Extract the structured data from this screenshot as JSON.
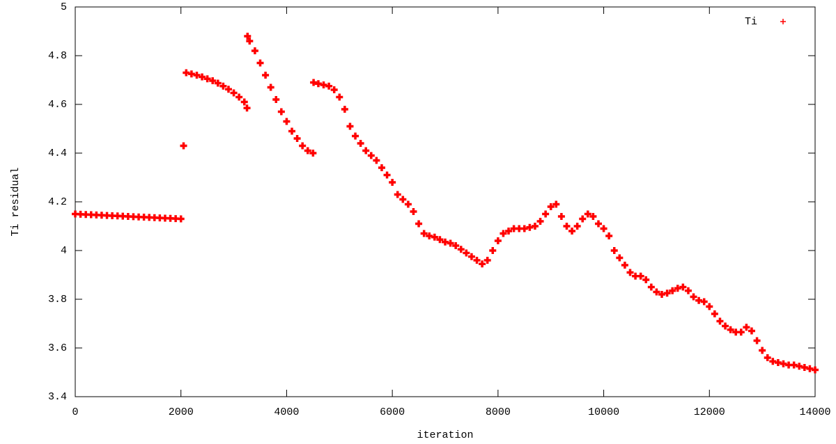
{
  "chart_data": {
    "type": "scatter",
    "x_label": "iteration",
    "y_label": "Ti residual",
    "xlim": [
      0,
      14000
    ],
    "ylim": [
      3.4,
      5
    ],
    "xticks": [
      0,
      2000,
      4000,
      6000,
      8000,
      10000,
      12000,
      14000
    ],
    "yticks": [
      3.4,
      3.6,
      3.8,
      4,
      4.2,
      4.4,
      4.6,
      4.8,
      5
    ],
    "grid": false,
    "legend": "upper right",
    "x": [
      0,
      100,
      200,
      300,
      400,
      500,
      600,
      700,
      800,
      900,
      1000,
      1100,
      1200,
      1300,
      1400,
      1500,
      1600,
      1700,
      1800,
      1900,
      2000,
      2050,
      2100,
      2200,
      2300,
      2400,
      2500,
      2600,
      2700,
      2800,
      2900,
      3000,
      3100,
      3200,
      3250,
      3260,
      3300,
      3400,
      3500,
      3600,
      3700,
      3800,
      3900,
      4000,
      4100,
      4200,
      4300,
      4400,
      4500,
      4510,
      4600,
      4700,
      4800,
      4900,
      5000,
      5100,
      5200,
      5300,
      5400,
      5500,
      5600,
      5700,
      5800,
      5900,
      6000,
      6100,
      6200,
      6300,
      6400,
      6500,
      6600,
      6700,
      6800,
      6900,
      7000,
      7100,
      7200,
      7300,
      7400,
      7500,
      7600,
      7700,
      7800,
      7900,
      8000,
      8100,
      8200,
      8300,
      8400,
      8500,
      8600,
      8700,
      8800,
      8900,
      9000,
      9100,
      9200,
      9300,
      9400,
      9500,
      9600,
      9700,
      9800,
      9900,
      10000,
      10100,
      10200,
      10300,
      10400,
      10500,
      10600,
      10700,
      10800,
      10900,
      11000,
      11100,
      11200,
      11300,
      11400,
      11500,
      11600,
      11700,
      11800,
      11900,
      12000,
      12100,
      12200,
      12300,
      12400,
      12500,
      12600,
      12700,
      12800,
      12900,
      13000,
      13100,
      13200,
      13300,
      13400,
      13500,
      13600,
      13700,
      13800,
      13900,
      14000
    ],
    "series": [
      {
        "name": "Ti",
        "color": "#ff0000",
        "values": [
          4.15,
          4.149,
          4.148,
          4.147,
          4.146,
          4.145,
          4.144,
          4.143,
          4.142,
          4.141,
          4.14,
          4.139,
          4.138,
          4.137,
          4.136,
          4.135,
          4.134,
          4.133,
          4.132,
          4.131,
          4.13,
          4.43,
          4.73,
          4.725,
          4.72,
          4.713,
          4.705,
          4.697,
          4.687,
          4.675,
          4.662,
          4.647,
          4.63,
          4.61,
          4.585,
          4.88,
          4.86,
          4.82,
          4.77,
          4.72,
          4.67,
          4.62,
          4.57,
          4.53,
          4.49,
          4.46,
          4.43,
          4.41,
          4.4,
          4.69,
          4.685,
          4.68,
          4.675,
          4.66,
          4.63,
          4.58,
          4.51,
          4.47,
          4.44,
          4.41,
          4.39,
          4.37,
          4.34,
          4.31,
          4.28,
          4.23,
          4.21,
          4.19,
          4.16,
          4.11,
          4.07,
          4.06,
          4.055,
          4.045,
          4.035,
          4.03,
          4.02,
          4.005,
          3.99,
          3.975,
          3.96,
          3.945,
          3.96,
          4.0,
          4.04,
          4.07,
          4.08,
          4.09,
          4.09,
          4.09,
          4.095,
          4.1,
          4.12,
          4.15,
          4.18,
          4.19,
          4.14,
          4.1,
          4.08,
          4.1,
          4.13,
          4.15,
          4.14,
          4.11,
          4.09,
          4.06,
          4.0,
          3.97,
          3.94,
          3.91,
          3.895,
          3.895,
          3.88,
          3.85,
          3.83,
          3.82,
          3.825,
          3.835,
          3.845,
          3.85,
          3.835,
          3.81,
          3.795,
          3.79,
          3.77,
          3.74,
          3.71,
          3.69,
          3.675,
          3.665,
          3.665,
          3.685,
          3.67,
          3.63,
          3.59,
          3.56,
          3.545,
          3.54,
          3.535,
          3.53,
          3.53,
          3.525,
          3.52,
          3.515,
          3.51
        ]
      }
    ]
  }
}
